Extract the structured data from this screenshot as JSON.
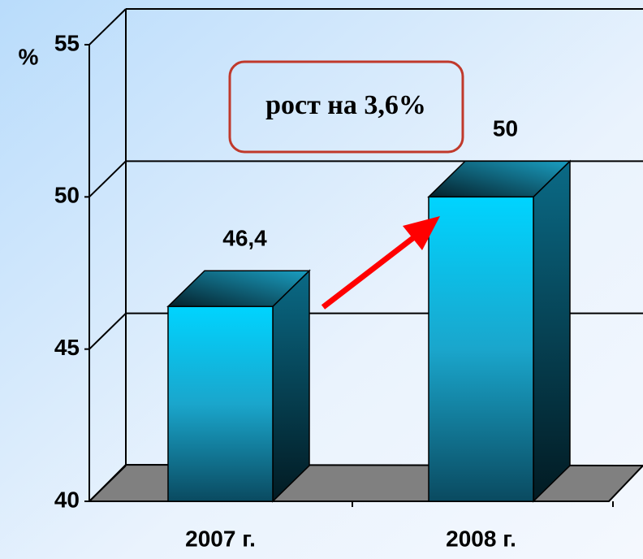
{
  "chart_data": {
    "type": "bar3d",
    "y_label": "%",
    "annotation": "рост на 3,6%",
    "categories": [
      "2007 г.",
      "2008 г."
    ],
    "values": [
      46.4,
      50
    ],
    "value_labels": [
      "46,4",
      "50"
    ],
    "ylim": [
      40,
      55
    ],
    "yticks": [
      40,
      45,
      50,
      55
    ],
    "grid": true
  }
}
